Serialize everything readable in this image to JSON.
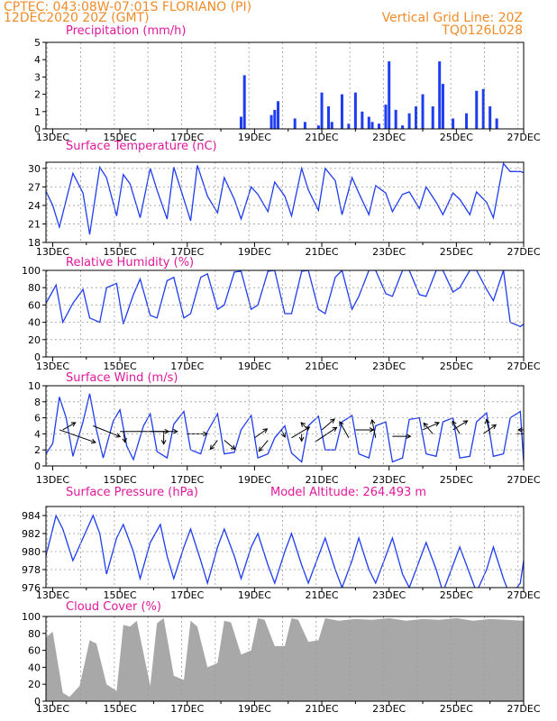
{
  "header": {
    "line1_left": "CPTEC:   043:08W-07:01S   FLORIANO (PI)",
    "line2_left": "12DEC2020 20Z (GMT)",
    "line1_right": "Vertical Grid Line: 20Z",
    "line2_right": "TQ0126L028"
  },
  "colors": {
    "header": "#f08c28",
    "title": "#e0189a",
    "series": "#1e3cf0",
    "cloud": "#a8a8a8",
    "grid": "#9a9a9a"
  },
  "x_tick_labels": [
    "13DEC",
    "15DEC",
    "17DEC",
    "19DEC",
    "21DEC",
    "23DEC",
    "25DEC",
    "27DEC"
  ],
  "chart_data": [
    {
      "type": "bar",
      "title": "Precipitation (mm/h)",
      "ylim": [
        0,
        5
      ],
      "yticks": [
        0,
        1,
        2,
        3,
        4,
        5
      ],
      "xlim_days": [
        12.8,
        27.0
      ],
      "grid": "vertical dashed at 20Z",
      "x": [
        18.6,
        18.7,
        19.5,
        19.6,
        19.7,
        20.2,
        20.5,
        20.9,
        21.0,
        21.2,
        21.3,
        21.6,
        21.8,
        22.0,
        22.2,
        22.4,
        22.5,
        22.7,
        22.9,
        23.0,
        23.2,
        23.4,
        23.6,
        23.8,
        24.0,
        24.3,
        24.5,
        24.6,
        24.9,
        25.3,
        25.6,
        25.8,
        26.0,
        26.2
      ],
      "values": [
        0.7,
        3.1,
        0.8,
        1.1,
        1.6,
        0.6,
        0.4,
        0.2,
        2.1,
        1.3,
        0.4,
        2.0,
        0.3,
        2.1,
        1.0,
        0.7,
        0.4,
        0.3,
        1.4,
        3.9,
        1.1,
        0.2,
        0.9,
        1.3,
        2.0,
        1.3,
        3.9,
        2.6,
        0.6,
        0.9,
        2.2,
        2.3,
        1.3,
        0.6
      ]
    },
    {
      "type": "line",
      "title": "Surface Temperature (nC)",
      "ylim": [
        18,
        31
      ],
      "yticks": [
        18,
        21,
        24,
        27,
        30
      ],
      "x": [
        12.8,
        13.0,
        13.2,
        13.6,
        13.9,
        14.1,
        14.4,
        14.6,
        14.9,
        15.1,
        15.3,
        15.6,
        15.9,
        16.1,
        16.4,
        16.6,
        16.9,
        17.1,
        17.3,
        17.6,
        17.9,
        18.1,
        18.4,
        18.6,
        18.9,
        19.1,
        19.4,
        19.6,
        19.9,
        20.1,
        20.4,
        20.6,
        20.9,
        21.1,
        21.4,
        21.6,
        21.9,
        22.1,
        22.4,
        22.6,
        22.9,
        23.1,
        23.4,
        23.6,
        23.9,
        24.1,
        24.4,
        24.6,
        24.9,
        25.1,
        25.4,
        25.6,
        25.9,
        26.1,
        26.4,
        26.6,
        26.9,
        27.0
      ],
      "values": [
        26.3,
        24.0,
        20.5,
        29.2,
        26.0,
        19.3,
        30.2,
        28.5,
        22.3,
        29.0,
        27.5,
        22.0,
        30.0,
        26.5,
        21.8,
        30.2,
        25.0,
        21.5,
        30.5,
        25.5,
        22.8,
        28.5,
        25.0,
        21.8,
        27.0,
        25.8,
        23.0,
        27.8,
        25.5,
        22.3,
        30.0,
        26.5,
        23.2,
        30.0,
        28.0,
        22.5,
        28.5,
        26.0,
        22.5,
        27.2,
        26.0,
        23.0,
        25.8,
        26.2,
        23.5,
        27.0,
        24.5,
        22.5,
        26.0,
        25.0,
        22.5,
        26.2,
        24.5,
        22.0,
        30.8,
        29.5,
        29.5,
        29.3
      ]
    },
    {
      "type": "line",
      "title": "Relative Humidity (%)",
      "ylim": [
        0,
        100
      ],
      "yticks": [
        0,
        20,
        40,
        60,
        80,
        100
      ],
      "x": [
        12.8,
        13.1,
        13.3,
        13.6,
        13.9,
        14.1,
        14.4,
        14.6,
        14.9,
        15.1,
        15.4,
        15.6,
        15.9,
        16.1,
        16.4,
        16.6,
        16.9,
        17.1,
        17.4,
        17.6,
        17.9,
        18.1,
        18.4,
        18.6,
        18.9,
        19.1,
        19.4,
        19.6,
        19.9,
        20.1,
        20.4,
        20.6,
        20.9,
        21.1,
        21.4,
        21.6,
        21.9,
        22.1,
        22.4,
        22.6,
        22.9,
        23.1,
        23.4,
        23.6,
        23.9,
        24.1,
        24.4,
        24.6,
        24.9,
        25.1,
        25.4,
        25.6,
        25.9,
        26.1,
        26.4,
        26.6,
        26.9,
        27.0
      ],
      "values": [
        62,
        83,
        40,
        62,
        78,
        45,
        40,
        80,
        85,
        38,
        72,
        90,
        48,
        45,
        88,
        92,
        45,
        50,
        92,
        96,
        55,
        60,
        98,
        99,
        55,
        60,
        99,
        100,
        50,
        50,
        99,
        100,
        55,
        50,
        92,
        100,
        55,
        70,
        100,
        100,
        73,
        70,
        100,
        100,
        72,
        70,
        100,
        100,
        75,
        80,
        100,
        100,
        78,
        65,
        100,
        40,
        35,
        38
      ]
    },
    {
      "type": "line",
      "title": "Surface Wind (m/s)",
      "ylim": [
        0,
        10
      ],
      "yticks": [
        0,
        2,
        4,
        6,
        8,
        10
      ],
      "x": [
        12.8,
        13.0,
        13.2,
        13.4,
        13.6,
        13.9,
        14.1,
        14.3,
        14.5,
        14.8,
        15.0,
        15.2,
        15.4,
        15.7,
        15.9,
        16.1,
        16.4,
        16.6,
        16.9,
        17.1,
        17.4,
        17.6,
        17.9,
        18.1,
        18.4,
        18.6,
        18.9,
        19.1,
        19.4,
        19.6,
        19.9,
        20.1,
        20.4,
        20.6,
        20.9,
        21.1,
        21.4,
        21.6,
        21.9,
        22.1,
        22.4,
        22.6,
        22.9,
        23.1,
        23.4,
        23.6,
        23.9,
        24.1,
        24.4,
        24.6,
        24.9,
        25.1,
        25.4,
        25.6,
        25.9,
        26.1,
        26.4,
        26.6,
        26.9,
        27.0
      ],
      "values": [
        1.5,
        2.8,
        8.6,
        6.0,
        1.2,
        5.5,
        9.0,
        4.5,
        1.0,
        5.6,
        7.0,
        2.5,
        0.8,
        5.0,
        6.5,
        1.8,
        1.0,
        5.2,
        6.8,
        2.0,
        1.5,
        4.3,
        6.5,
        1.5,
        1.7,
        4.5,
        6.3,
        1.0,
        1.5,
        3.5,
        5.0,
        1.6,
        0.5,
        5.0,
        6.2,
        2.0,
        2.0,
        5.5,
        6.3,
        1.5,
        1.0,
        5.0,
        5.5,
        0.5,
        1.0,
        5.8,
        6.0,
        1.5,
        1.2,
        5.5,
        6.0,
        1.0,
        1.2,
        5.5,
        6.6,
        1.2,
        1.5,
        6.0,
        6.8,
        0.5
      ],
      "arrows": [
        {
          "day": 13.2,
          "speed": 4.5,
          "dx": 40,
          "dy": 14
        },
        {
          "day": 13.3,
          "speed": 4.5,
          "dx": 14,
          "dy": -8
        },
        {
          "day": 14.2,
          "speed": 5.0,
          "dx": 30,
          "dy": 12
        },
        {
          "day": 15.0,
          "speed": 4.3,
          "dx": 54,
          "dy": 0
        },
        {
          "day": 15.1,
          "speed": 4.3,
          "dx": 2,
          "dy": 12
        },
        {
          "day": 15.9,
          "speed": 4.3,
          "dx": 30,
          "dy": 0
        },
        {
          "day": 16.3,
          "speed": 4.3,
          "dx": 0,
          "dy": 14
        },
        {
          "day": 17.0,
          "speed": 4.0,
          "dx": 22,
          "dy": 0
        },
        {
          "day": 17.9,
          "speed": 3.2,
          "dx": -8,
          "dy": 10
        },
        {
          "day": 18.1,
          "speed": 3.2,
          "dx": 12,
          "dy": 10
        },
        {
          "day": 19.0,
          "speed": 3.5,
          "dx": 14,
          "dy": -10
        },
        {
          "day": 19.4,
          "speed": 3.2,
          "dx": -10,
          "dy": 12
        },
        {
          "day": 19.8,
          "speed": 4.5,
          "dx": 4,
          "dy": 8
        },
        {
          "day": 20.1,
          "speed": 3.5,
          "dx": 20,
          "dy": -12
        },
        {
          "day": 20.4,
          "speed": 4.0,
          "dx": 0,
          "dy": 8
        },
        {
          "day": 20.6,
          "speed": 4.5,
          "dx": -8,
          "dy": -8
        },
        {
          "day": 20.8,
          "speed": 3.0,
          "dx": 24,
          "dy": -16
        },
        {
          "day": 21.0,
          "speed": 4.5,
          "dx": 14,
          "dy": -12
        },
        {
          "day": 21.8,
          "speed": 3.5,
          "dx": -10,
          "dy": -18
        },
        {
          "day": 22.0,
          "speed": 4.5,
          "dx": 20,
          "dy": 0
        },
        {
          "day": 22.6,
          "speed": 3.5,
          "dx": -4,
          "dy": -20
        },
        {
          "day": 23.1,
          "speed": 3.7,
          "dx": 20,
          "dy": 0
        },
        {
          "day": 24.0,
          "speed": 4.5,
          "dx": 18,
          "dy": -8
        },
        {
          "day": 24.3,
          "speed": 4.0,
          "dx": -10,
          "dy": -12
        },
        {
          "day": 24.9,
          "speed": 4.5,
          "dx": 16,
          "dy": -10
        },
        {
          "day": 25.1,
          "speed": 4.0,
          "dx": -8,
          "dy": -14
        },
        {
          "day": 25.8,
          "speed": 4.0,
          "dx": 14,
          "dy": -10
        },
        {
          "day": 26.0,
          "speed": 4.0,
          "dx": -4,
          "dy": -16
        },
        {
          "day": 26.8,
          "speed": 4.0,
          "dx": 16,
          "dy": 0
        },
        {
          "day": 27.0,
          "speed": 4.5,
          "dx": -6,
          "dy": 0
        }
      ]
    },
    {
      "type": "line",
      "title": "Surface Pressure (hPa)",
      "subtitle": "Model Altitude: 264.493 m",
      "ylim": [
        976,
        985
      ],
      "yticks": [
        976,
        978,
        980,
        982,
        984
      ],
      "x": [
        12.8,
        13.1,
        13.3,
        13.6,
        13.9,
        14.2,
        14.4,
        14.6,
        14.9,
        15.1,
        15.4,
        15.6,
        15.9,
        16.2,
        16.4,
        16.6,
        16.9,
        17.1,
        17.4,
        17.6,
        17.9,
        18.1,
        18.4,
        18.6,
        18.9,
        19.1,
        19.4,
        19.6,
        19.9,
        20.1,
        20.4,
        20.6,
        20.9,
        21.1,
        21.4,
        21.6,
        21.9,
        22.1,
        22.4,
        22.6,
        22.9,
        23.1,
        23.4,
        23.6,
        23.9,
        24.1,
        24.4,
        24.6,
        24.9,
        25.1,
        25.4,
        25.6,
        25.9,
        26.1,
        26.4,
        26.6,
        26.9,
        27.0
      ],
      "values": [
        979.5,
        984.0,
        982.5,
        979.0,
        981.5,
        984.0,
        982.0,
        977.5,
        981.5,
        983.0,
        980.0,
        977.0,
        981.0,
        983.0,
        979.5,
        977.0,
        980.5,
        982.5,
        979.0,
        976.5,
        980.5,
        982.5,
        979.5,
        977.0,
        980.5,
        982.0,
        978.5,
        976.5,
        980.0,
        982.0,
        978.5,
        976.5,
        979.5,
        981.5,
        978.0,
        976.0,
        979.0,
        981.5,
        978.0,
        976.5,
        979.5,
        981.5,
        977.5,
        976.0,
        979.0,
        981.0,
        978.0,
        975.5,
        978.5,
        980.5,
        977.5,
        975.5,
        978.0,
        980.5,
        977.0,
        975.0,
        976.5,
        979.0
      ]
    },
    {
      "type": "area",
      "title": "Cloud Cover (%)",
      "ylim": [
        0,
        100
      ],
      "yticks": [
        0,
        20,
        40,
        60,
        80,
        100
      ],
      "x": [
        12.8,
        13.0,
        13.3,
        13.5,
        13.8,
        14.1,
        14.3,
        14.6,
        14.9,
        15.1,
        15.3,
        15.5,
        15.9,
        16.1,
        16.3,
        16.6,
        16.9,
        17.1,
        17.3,
        17.6,
        17.9,
        18.1,
        18.3,
        18.6,
        18.9,
        19.1,
        19.3,
        19.6,
        19.9,
        20.1,
        20.3,
        20.6,
        20.9,
        21.1,
        21.5,
        22.0,
        22.5,
        23.0,
        23.5,
        24.0,
        24.5,
        25.0,
        25.5,
        26.0,
        26.5,
        27.0
      ],
      "values": [
        75,
        82,
        10,
        5,
        18,
        72,
        68,
        20,
        12,
        90,
        88,
        95,
        18,
        92,
        98,
        30,
        25,
        95,
        88,
        40,
        45,
        95,
        93,
        55,
        60,
        98,
        96,
        65,
        65,
        98,
        96,
        70,
        72,
        98,
        95,
        97,
        96,
        98,
        95,
        97,
        96,
        98,
        95,
        97,
        96,
        95
      ]
    }
  ]
}
